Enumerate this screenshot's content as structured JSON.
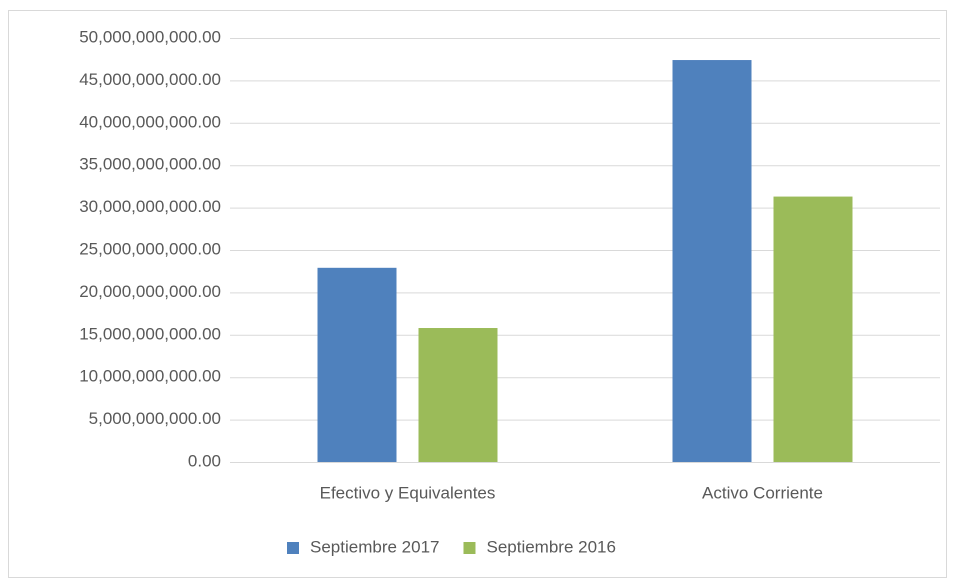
{
  "chart_data": {
    "type": "bar",
    "categories": [
      "Efectivo y Equivalentes",
      "Activo Corriente"
    ],
    "series": [
      {
        "name": "Septiembre 2017",
        "color": "#4f81bd",
        "values": [
          22900000000,
          47400000000
        ]
      },
      {
        "name": "Septiembre 2016",
        "color": "#9bbb59",
        "values": [
          15800000000,
          31300000000
        ]
      }
    ],
    "ylim": [
      0,
      50000000000
    ],
    "yticks": [
      {
        "value": 0,
        "label": "0.00"
      },
      {
        "value": 5000000000,
        "label": "5,000,000,000.00"
      },
      {
        "value": 10000000000,
        "label": "10,000,000,000.00"
      },
      {
        "value": 15000000000,
        "label": "15,000,000,000.00"
      },
      {
        "value": 20000000000,
        "label": "20,000,000,000.00"
      },
      {
        "value": 25000000000,
        "label": "25,000,000,000.00"
      },
      {
        "value": 30000000000,
        "label": "30,000,000,000.00"
      },
      {
        "value": 35000000000,
        "label": "35,000,000,000.00"
      },
      {
        "value": 40000000000,
        "label": "40,000,000,000.00"
      },
      {
        "value": 45000000000,
        "label": "45,000,000,000.00"
      },
      {
        "value": 50000000000,
        "label": "50,000,000,000.00"
      }
    ],
    "grid": true,
    "legend": "bottom"
  }
}
